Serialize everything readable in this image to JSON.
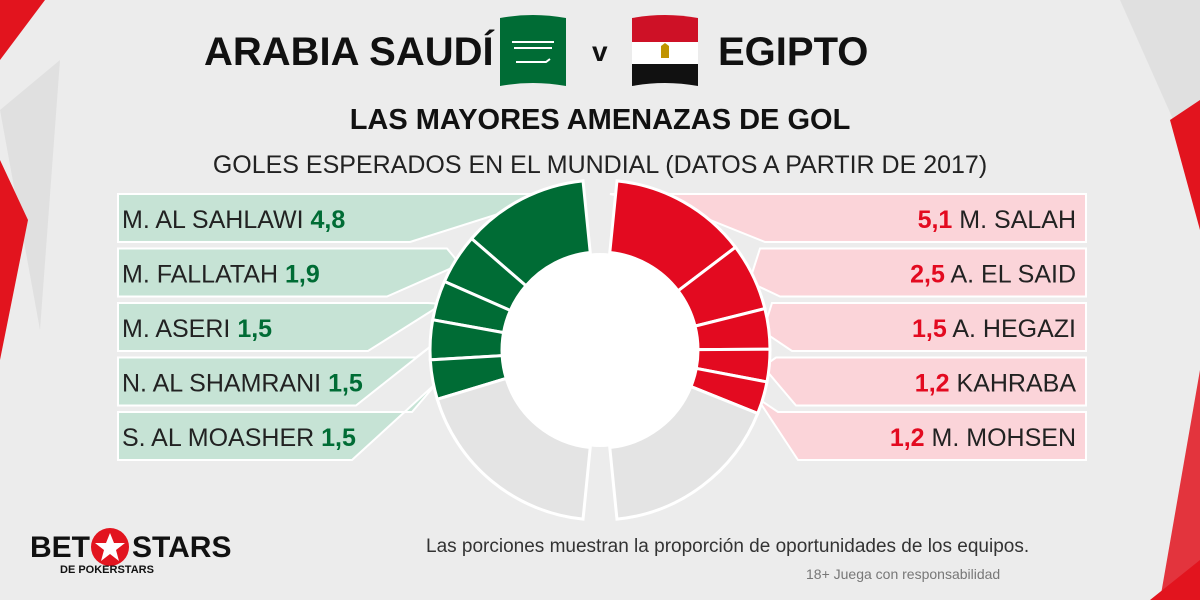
{
  "header": {
    "team_left": "ARABIA SAUDÍ",
    "vs": "v",
    "team_right": "EGIPTO",
    "subtitle": "LAS MAYORES AMENAZAS DE GOL",
    "subtitle2": "GOLES ESPERADOS EN EL MUNDIAL (DATOS A PARTIR DE 2017)"
  },
  "footer": {
    "note": "Las porciones muestran la proporción de oportunidades de los equipos.",
    "responsible": "18+ Juega con responsabilidad"
  },
  "logo": {
    "bet": "BET",
    "stars": "STARS",
    "sub": "DE POKERSTARS"
  },
  "colors": {
    "saudi_green": "#006c35",
    "egypt_red": "#e30a20",
    "saudi_band": "#c6e3d5",
    "egypt_band": "#fbd4d9",
    "remainder": "#e4e4e4"
  },
  "chart_data": {
    "type": "pie",
    "title": "LAS MAYORES AMENAZAS DE GOL",
    "subtitle": "GOLES ESPERADOS EN EL MUNDIAL (DATOS A PARTIR DE 2017)",
    "series": [
      {
        "name": "ARABIA SAUDÍ",
        "players": [
          {
            "name": "M. AL SAHLAWI",
            "value": 4.8,
            "label": "4,8"
          },
          {
            "name": "M. FALLATAH",
            "value": 1.9,
            "label": "1,9"
          },
          {
            "name": "M. ASERI",
            "value": 1.5,
            "label": "1,5"
          },
          {
            "name": "N. AL SHAMRANI",
            "value": 1.5,
            "label": "1,5"
          },
          {
            "name": "S. AL MOASHER",
            "value": 1.5,
            "label": "1,5"
          }
        ],
        "share_of_half": 0.6
      },
      {
        "name": "EGIPTO",
        "players": [
          {
            "name": "M. SALAH",
            "value": 5.1,
            "label": "5,1"
          },
          {
            "name": "A. EL SAID",
            "value": 2.5,
            "label": "2,5"
          },
          {
            "name": "A. HEGAZI",
            "value": 1.5,
            "label": "1,5"
          },
          {
            "name": "KAHRABA",
            "value": 1.2,
            "label": "1,2"
          },
          {
            "name": "M. MOHSEN",
            "value": 1.2,
            "label": "1,2"
          }
        ],
        "share_of_half": 0.63
      }
    ]
  }
}
